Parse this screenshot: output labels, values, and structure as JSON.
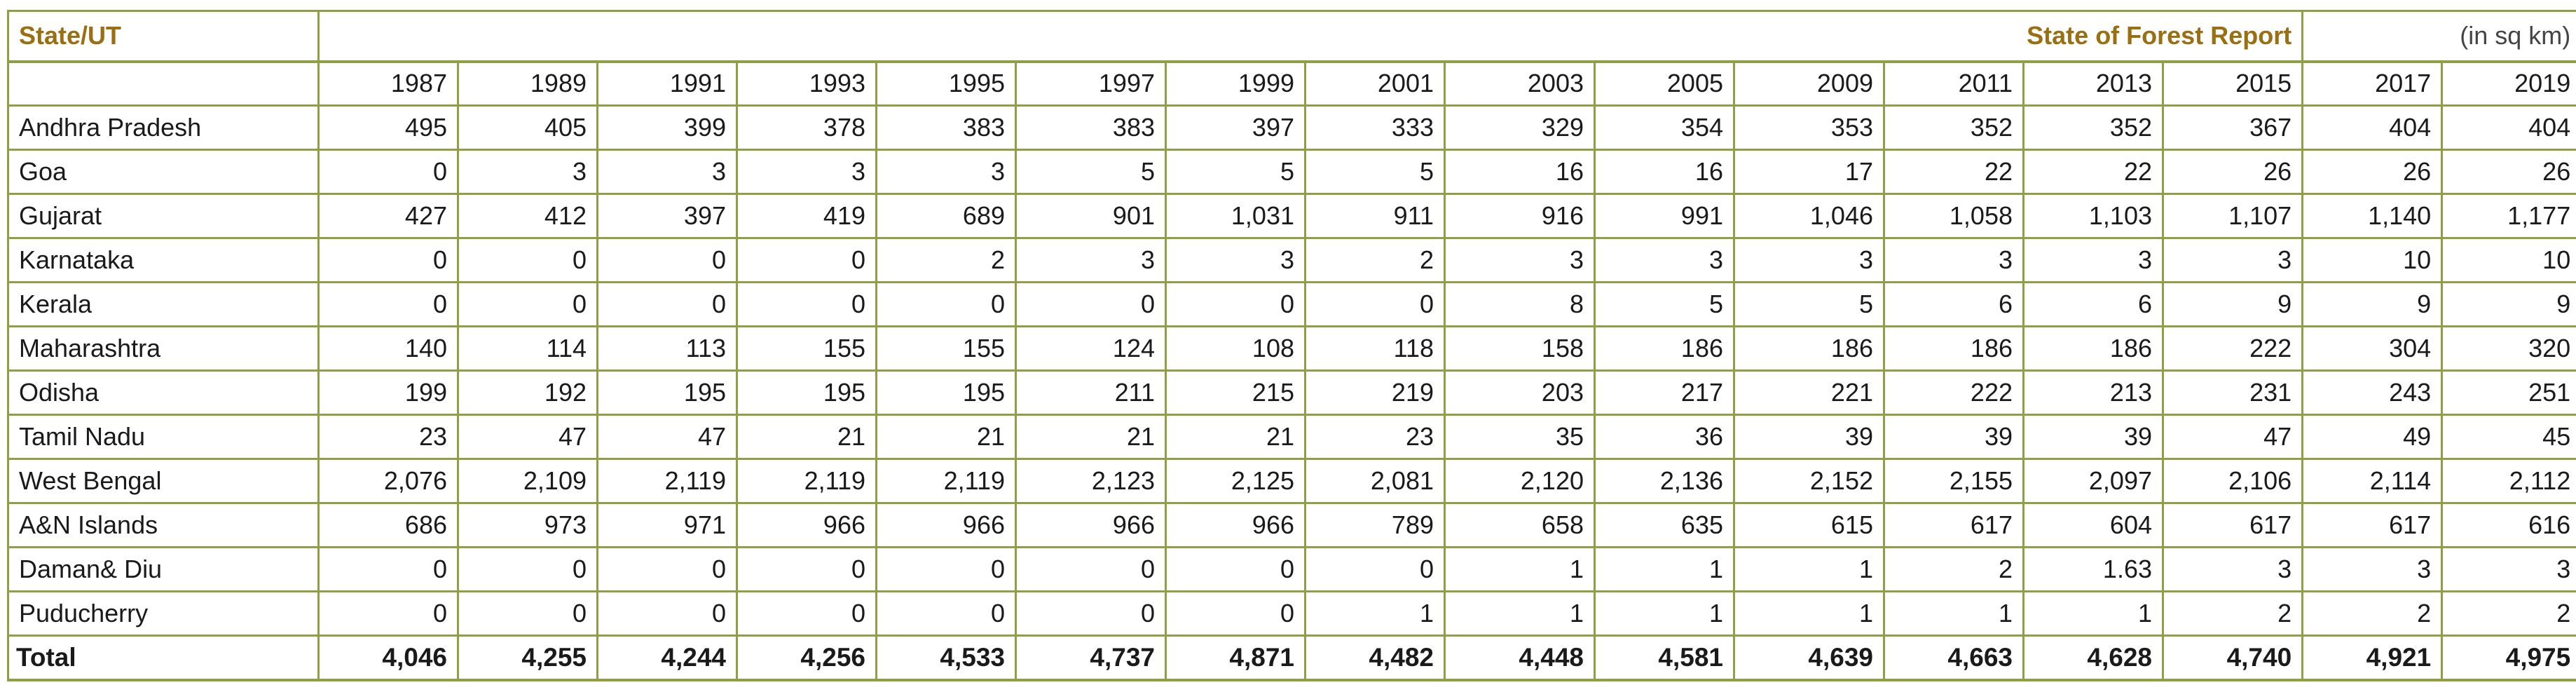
{
  "table": {
    "header_label": "State/UT",
    "report_title": "State of Forest Report",
    "units": "(in sq km)",
    "years": [
      "1987",
      "1989",
      "1991",
      "1993",
      "1995",
      "1997",
      "1999",
      "2001",
      "2003",
      "2005",
      "2009",
      "2011",
      "2013",
      "2015",
      "2017",
      "2019"
    ],
    "rows": [
      {
        "state": "Andhra Pradesh",
        "values": [
          "495",
          "405",
          "399",
          "378",
          "383",
          "383",
          "397",
          "333",
          "329",
          "354",
          "353",
          "352",
          "352",
          "367",
          "404",
          "404"
        ]
      },
      {
        "state": "Goa",
        "values": [
          "0",
          "3",
          "3",
          "3",
          "3",
          "5",
          "5",
          "5",
          "16",
          "16",
          "17",
          "22",
          "22",
          "26",
          "26",
          "26"
        ]
      },
      {
        "state": "Gujarat",
        "values": [
          "427",
          "412",
          "397",
          "419",
          "689",
          "901",
          "1,031",
          "911",
          "916",
          "991",
          "1,046",
          "1,058",
          "1,103",
          "1,107",
          "1,140",
          "1,177"
        ]
      },
      {
        "state": "Karnataka",
        "values": [
          "0",
          "0",
          "0",
          "0",
          "2",
          "3",
          "3",
          "2",
          "3",
          "3",
          "3",
          "3",
          "3",
          "3",
          "10",
          "10"
        ]
      },
      {
        "state": "Kerala",
        "values": [
          "0",
          "0",
          "0",
          "0",
          "0",
          "0",
          "0",
          "0",
          "8",
          "5",
          "5",
          "6",
          "6",
          "9",
          "9",
          "9"
        ]
      },
      {
        "state": "Maharashtra",
        "values": [
          "140",
          "114",
          "113",
          "155",
          "155",
          "124",
          "108",
          "118",
          "158",
          "186",
          "186",
          "186",
          "186",
          "222",
          "304",
          "320"
        ]
      },
      {
        "state": "Odisha",
        "values": [
          "199",
          "192",
          "195",
          "195",
          "195",
          "211",
          "215",
          "219",
          "203",
          "217",
          "221",
          "222",
          "213",
          "231",
          "243",
          "251"
        ]
      },
      {
        "state": "Tamil Nadu",
        "values": [
          "23",
          "47",
          "47",
          "21",
          "21",
          "21",
          "21",
          "23",
          "35",
          "36",
          "39",
          "39",
          "39",
          "47",
          "49",
          "45"
        ]
      },
      {
        "state": "West Bengal",
        "values": [
          "2,076",
          "2,109",
          "2,119",
          "2,119",
          "2,119",
          "2,123",
          "2,125",
          "2,081",
          "2,120",
          "2,136",
          "2,152",
          "2,155",
          "2,097",
          "2,106",
          "2,114",
          "2,112"
        ]
      },
      {
        "state": "A&N Islands",
        "values": [
          "686",
          "973",
          "971",
          "966",
          "966",
          "966",
          "966",
          "789",
          "658",
          "635",
          "615",
          "617",
          "604",
          "617",
          "617",
          "616"
        ]
      },
      {
        "state": "Daman& Diu",
        "values": [
          "0",
          "0",
          "0",
          "0",
          "0",
          "0",
          "0",
          "0",
          "1",
          "1",
          "1",
          "2",
          "1.63",
          "3",
          "3",
          "3"
        ]
      },
      {
        "state": "Puducherry",
        "values": [
          "0",
          "0",
          "0",
          "0",
          "0",
          "0",
          "0",
          "1",
          "1",
          "1",
          "1",
          "1",
          "1",
          "2",
          "2",
          "2"
        ]
      }
    ],
    "total": {
      "label": "Total",
      "values": [
        "4,046",
        "4,255",
        "4,244",
        "4,256",
        "4,533",
        "4,737",
        "4,871",
        "4,482",
        "4,448",
        "4,581",
        "4,639",
        "4,663",
        "4,628",
        "4,740",
        "4,921",
        "4,975"
      ]
    }
  },
  "colors": {
    "accent": "#9a6f12",
    "border": "#8e9f45",
    "text": "#1a1a1a"
  }
}
